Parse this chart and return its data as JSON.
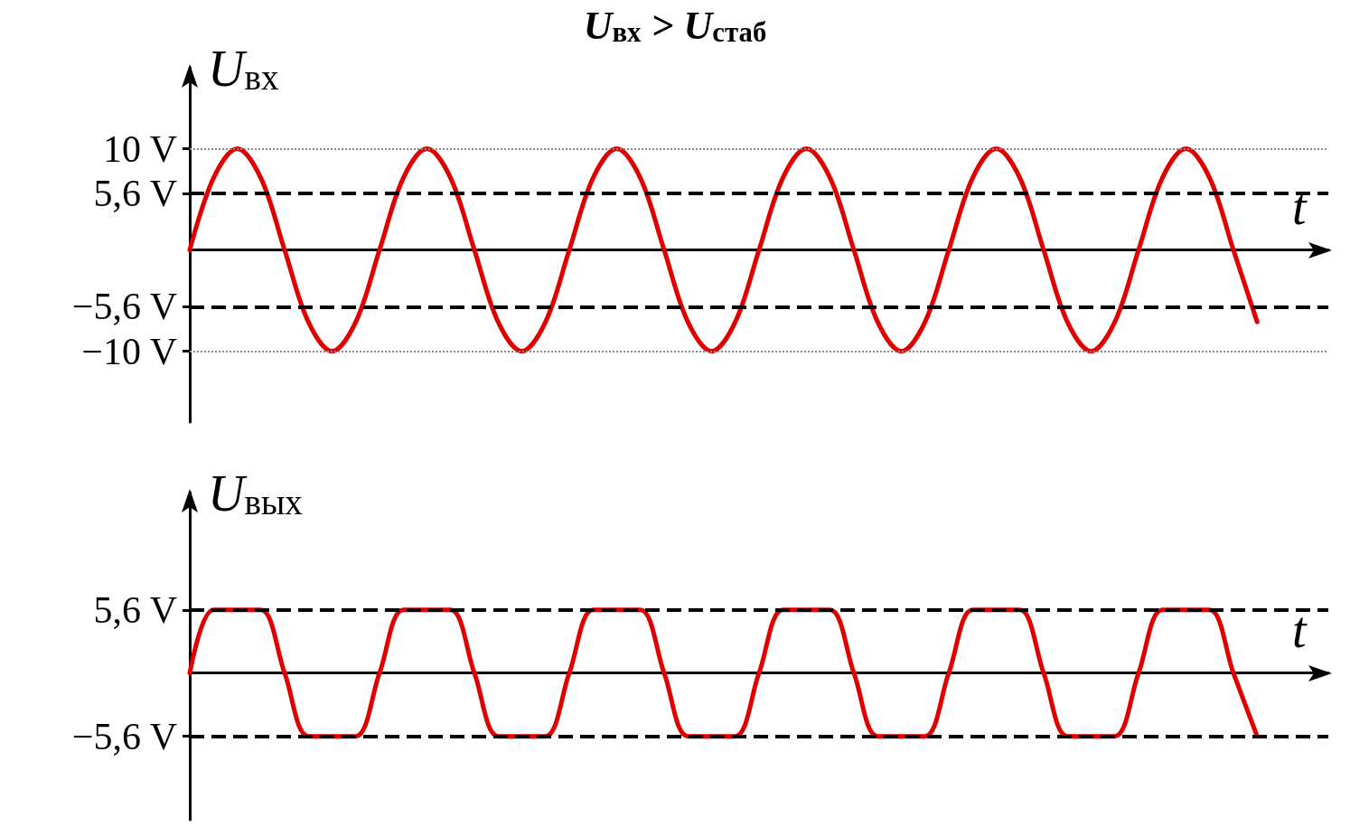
{
  "chart_data": [
    {
      "type": "line",
      "title": "U$_{вх}$ > U$_{стаб}$",
      "ylabel": "U$_{вх}$",
      "xlabel": "t",
      "categories": [
        null,
        null,
        null,
        null,
        null,
        null,
        null,
        null,
        null,
        null,
        null,
        null,
        null,
        null,
        null,
        null,
        null,
        null,
        null,
        null,
        null,
        null,
        null,
        null,
        null,
        null,
        null,
        null,
        null,
        null,
        null,
        null,
        null,
        null,
        null,
        null,
        null,
        null,
        null,
        null,
        null,
        null,
        null,
        null,
        null,
        null,
        null,
        null,
        null
      ],
      "series": [
        {
          "color": "#e00000",
          "values": [
            0,
            7.1,
            10,
            7.1,
            0,
            -7.1,
            -10,
            -7.1,
            0,
            7.1,
            10,
            7.1,
            0,
            -7.1,
            -10,
            -7.1,
            0,
            7.1,
            10,
            7.1,
            0,
            -7.1,
            -10,
            -7.1,
            0,
            7.1,
            10,
            7.1,
            0,
            -7.1,
            -10,
            -7.1,
            0,
            7.1,
            10,
            7.1,
            0,
            -7.1,
            -10,
            -7.1,
            0,
            7.1,
            10,
            7.1,
            0,
            -7.1,
            null,
            null,
            null
          ]
        }
      ],
      "ylim": [
        -17,
        18
      ],
      "yticks": [
        {
          "value": 10,
          "label": "10 V"
        },
        {
          "value": 5.6,
          "label": "5,6 V"
        },
        {
          "value": -5.6,
          "label": "−5,6 V"
        },
        {
          "value": -10,
          "label": "−10 V"
        }
      ],
      "ref_lines": [
        {
          "axis": "y",
          "value": 10,
          "line_style": "dotted",
          "color": "#888888"
        },
        {
          "axis": "y",
          "value": 5.6,
          "line_style": "dashed",
          "color": "#000000"
        },
        {
          "axis": "y",
          "value": -5.6,
          "line_style": "dashed",
          "color": "#000000"
        },
        {
          "axis": "y",
          "value": -10,
          "line_style": "dotted",
          "color": "#888888"
        }
      ],
      "grid": false,
      "marker": "none",
      "line_style": "solid"
    },
    {
      "type": "line",
      "ylabel": "U$_{вых}$",
      "xlabel": "t",
      "categories": [
        null,
        null,
        null,
        null,
        null,
        null,
        null,
        null,
        null,
        null,
        null,
        null,
        null,
        null,
        null,
        null,
        null,
        null,
        null,
        null,
        null,
        null,
        null,
        null,
        null,
        null,
        null,
        null,
        null,
        null,
        null,
        null,
        null,
        null,
        null,
        null,
        null,
        null,
        null,
        null,
        null,
        null,
        null,
        null,
        null,
        null,
        null,
        null,
        null
      ],
      "series": [
        {
          "color": "#e00000",
          "values": [
            0,
            5.6,
            5.6,
            5.6,
            0,
            -5.6,
            -5.6,
            -5.6,
            0,
            5.6,
            5.6,
            5.6,
            0,
            -5.6,
            -5.6,
            -5.6,
            0,
            5.6,
            5.6,
            5.6,
            0,
            -5.6,
            -5.6,
            -5.6,
            0,
            5.6,
            5.6,
            5.6,
            0,
            -5.6,
            -5.6,
            -5.6,
            0,
            5.6,
            5.6,
            5.6,
            0,
            -5.6,
            -5.6,
            -5.6,
            0,
            5.6,
            5.6,
            5.6,
            0,
            -5.6,
            null,
            null,
            null
          ]
        }
      ],
      "ylim": [
        -13,
        16
      ],
      "yticks": [
        {
          "value": 5.6,
          "label": "5,6 V"
        },
        {
          "value": -5.6,
          "label": "−5,6 V"
        }
      ],
      "ref_lines": [
        {
          "axis": "y",
          "value": 5.6,
          "line_style": "dashed",
          "color": "#000000"
        },
        {
          "axis": "y",
          "value": -5.6,
          "line_style": "dashed",
          "color": "#000000"
        }
      ],
      "grid": false,
      "marker": "none",
      "line_style": "solid"
    }
  ]
}
